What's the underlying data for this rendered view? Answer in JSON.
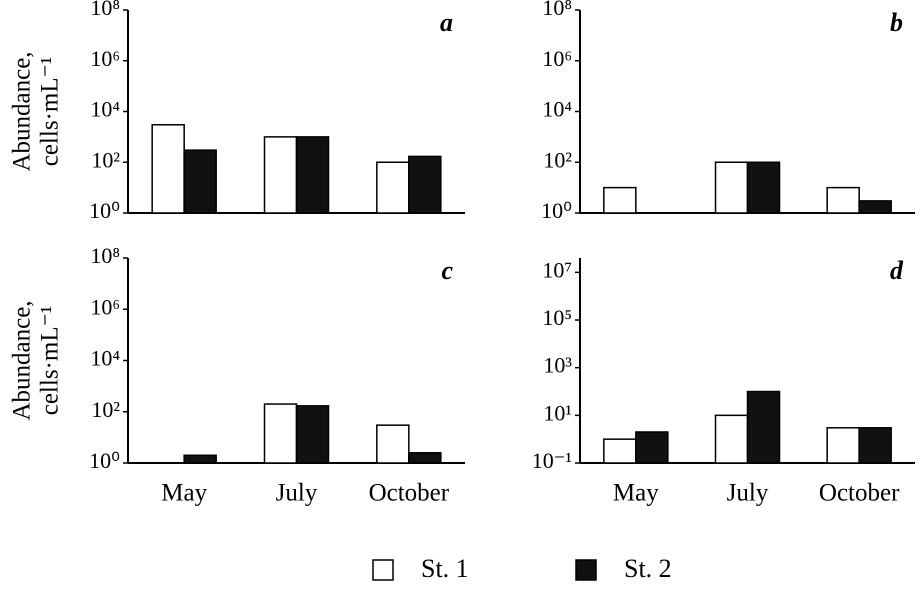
{
  "legend": [
    {
      "name": "St. 1",
      "color": "#ffffff"
    },
    {
      "name": "St. 2",
      "color": "#111111"
    }
  ],
  "chart_data": [
    {
      "type": "bar",
      "title": "a",
      "ylabel": [
        "Abundance,",
        "cells·mL⁻¹"
      ],
      "log_scale": true,
      "ylim": [
        1,
        100000000
      ],
      "yticks": [
        {
          "value": 1,
          "label": "10⁰"
        },
        {
          "value": 100,
          "label": "10²"
        },
        {
          "value": 10000,
          "label": "10⁴"
        },
        {
          "value": 1000000,
          "label": "10⁶"
        },
        {
          "value": 100000000,
          "label": "10⁸"
        }
      ],
      "series": [
        {
          "values": [
            3000,
            1000,
            100
          ]
        },
        {
          "values": [
            300,
            1000,
            170
          ]
        }
      ]
    },
    {
      "type": "bar",
      "title": "b",
      "log_scale": true,
      "ylim": [
        1,
        100000000
      ],
      "yticks": [
        {
          "value": 1,
          "label": "10⁰"
        },
        {
          "value": 100,
          "label": "10²"
        },
        {
          "value": 10000,
          "label": "10⁴"
        },
        {
          "value": 1000000,
          "label": "10⁶"
        },
        {
          "value": 100000000,
          "label": "10⁸"
        }
      ],
      "series": [
        {
          "values": [
            10,
            100,
            10
          ]
        },
        {
          "values": [
            null,
            100,
            3
          ]
        }
      ]
    },
    {
      "type": "bar",
      "title": "c",
      "ylabel": [
        "Abundance,",
        "cells·mL⁻¹"
      ],
      "log_scale": true,
      "categories": [
        "May",
        "July",
        "October"
      ],
      "ylim": [
        1,
        100000000
      ],
      "yticks": [
        {
          "value": 1,
          "label": "10⁰"
        },
        {
          "value": 100,
          "label": "10²"
        },
        {
          "value": 10000,
          "label": "10⁴"
        },
        {
          "value": 1000000,
          "label": "10⁶"
        },
        {
          "value": 100000000,
          "label": "10⁸"
        }
      ],
      "series": [
        {
          "values": [
            null,
            200,
            30
          ]
        },
        {
          "values": [
            2,
            170,
            2.5
          ]
        }
      ]
    },
    {
      "type": "bar",
      "title": "d",
      "log_scale": true,
      "categories": [
        "May",
        "July",
        "October"
      ],
      "ylim": [
        0.1,
        40000000
      ],
      "yticks": [
        {
          "value": 0.1,
          "label": "10⁻¹"
        },
        {
          "value": 10,
          "label": "10¹"
        },
        {
          "value": 1000,
          "label": "10³"
        },
        {
          "value": 100000,
          "label": "10⁵"
        },
        {
          "value": 10000000,
          "label": "10⁷"
        }
      ],
      "series": [
        {
          "values": [
            1,
            10,
            3
          ]
        },
        {
          "values": [
            2,
            100,
            3
          ]
        }
      ]
    }
  ]
}
